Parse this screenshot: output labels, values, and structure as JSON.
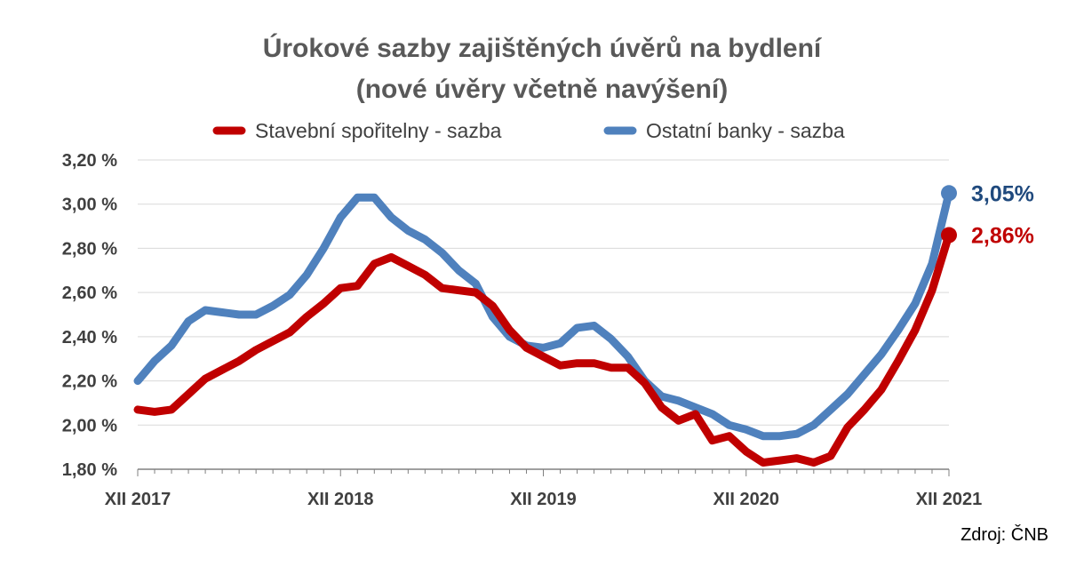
{
  "chart_data": {
    "type": "line",
    "title": "Úrokové sazby zajištěných úvěrů na bydlení",
    "subtitle": "(nové úvěry včetně navýšení)",
    "source": "Zdroj: ČNB",
    "legend_position": "top",
    "grid": true,
    "ylim": [
      1.8,
      3.2
    ],
    "yticks": [
      "1,80 %",
      "2,00 %",
      "2,20 %",
      "2,40 %",
      "2,60 %",
      "2,80 %",
      "3,00 %",
      "3,20 %"
    ],
    "ytick_values": [
      1.8,
      2.0,
      2.2,
      2.4,
      2.6,
      2.8,
      3.0,
      3.2
    ],
    "x_range": [
      "2017-12",
      "2021-12"
    ],
    "xtick_labels": [
      "XII 2017",
      "XII 2018",
      "XII 2019",
      "XII 2020",
      "XII 2021"
    ],
    "x": [
      "2017-12",
      "2018-01",
      "2018-02",
      "2018-03",
      "2018-04",
      "2018-05",
      "2018-06",
      "2018-07",
      "2018-08",
      "2018-09",
      "2018-10",
      "2018-11",
      "2018-12",
      "2019-01",
      "2019-02",
      "2019-03",
      "2019-04",
      "2019-05",
      "2019-06",
      "2019-07",
      "2019-08",
      "2019-09",
      "2019-10",
      "2019-11",
      "2019-12",
      "2020-01",
      "2020-02",
      "2020-03",
      "2020-04",
      "2020-05",
      "2020-06",
      "2020-07",
      "2020-08",
      "2020-09",
      "2020-10",
      "2020-11",
      "2020-12",
      "2021-01",
      "2021-02",
      "2021-03",
      "2021-04",
      "2021-05",
      "2021-06",
      "2021-07",
      "2021-08",
      "2021-09",
      "2021-10",
      "2021-11",
      "2021-12"
    ],
    "series": [
      {
        "name": "Stavební spořitelny - sazba",
        "color": "#C00000",
        "end_label": "2,86%",
        "values": [
          2.07,
          2.06,
          2.07,
          2.14,
          2.21,
          2.25,
          2.29,
          2.34,
          2.38,
          2.42,
          2.49,
          2.55,
          2.62,
          2.63,
          2.73,
          2.76,
          2.72,
          2.68,
          2.62,
          2.61,
          2.6,
          2.54,
          2.43,
          2.35,
          2.31,
          2.27,
          2.28,
          2.28,
          2.26,
          2.26,
          2.19,
          2.08,
          2.02,
          2.05,
          1.93,
          1.95,
          1.88,
          1.83,
          1.84,
          1.85,
          1.83,
          1.86,
          1.99,
          2.07,
          2.16,
          2.29,
          2.43,
          2.61,
          2.86
        ]
      },
      {
        "name": "Ostatní banky - sazba",
        "color": "#4F81BD",
        "end_label": "3,05%",
        "values": [
          2.2,
          2.29,
          2.36,
          2.47,
          2.52,
          2.51,
          2.5,
          2.5,
          2.54,
          2.59,
          2.68,
          2.8,
          2.94,
          3.03,
          3.03,
          2.94,
          2.88,
          2.84,
          2.78,
          2.7,
          2.64,
          2.49,
          2.4,
          2.36,
          2.35,
          2.37,
          2.44,
          2.45,
          2.39,
          2.31,
          2.2,
          2.13,
          2.11,
          2.08,
          2.05,
          2.0,
          1.98,
          1.95,
          1.95,
          1.96,
          2.0,
          2.07,
          2.14,
          2.23,
          2.32,
          2.43,
          2.55,
          2.73,
          3.05
        ]
      }
    ]
  }
}
